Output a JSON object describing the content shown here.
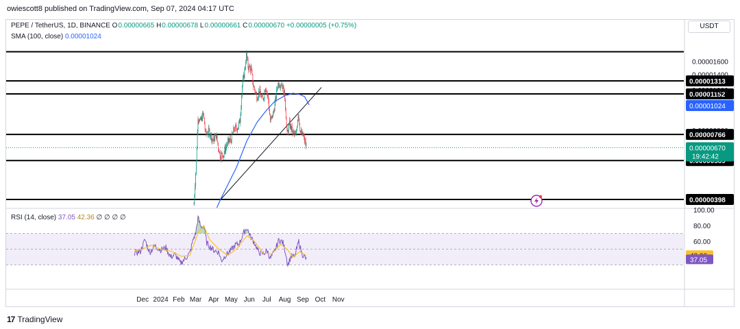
{
  "header": {
    "publisher": "owiescott8 published on TradingView.com, Sep 07, 2024 04:17 UTC"
  },
  "symbol_legend": {
    "symbol": "PEPE / TetherUS, 1D, BINANCE",
    "open_label": "O",
    "open": "0.00000665",
    "high_label": "H",
    "high": "0.00000678",
    "low_label": "L",
    "low": "0.00000661",
    "close_label": "C",
    "close": "0.00000670",
    "change": "+0.00000005 (+0.75%)"
  },
  "sma_legend": {
    "label": "SMA (100, close)",
    "value": "0.00001024"
  },
  "rsi_legend": {
    "label": "RSI (14, close)",
    "rsi": "37.05",
    "ma": "42.36",
    "extras": [
      "∅",
      "∅",
      "∅",
      "∅"
    ]
  },
  "currency": "USDT",
  "footer": {
    "logo_text": "TradingView",
    "logo_mark": "17"
  },
  "colors": {
    "up": "#089981",
    "down": "#f23645",
    "sma": "#2962ff",
    "rsi": "#7e57c2",
    "rsi_ma": "#fbc02d",
    "rsi_band": "#7e57c2",
    "level": "#000000"
  },
  "chart_data": [
    {
      "type": "candlestick",
      "title": "",
      "price_axis_ticks": [
        "0.00001600",
        "0.00001400",
        "0.00001200",
        "0.00000800"
      ],
      "x_ticks": [
        "Dec",
        "2024",
        "Feb",
        "Mar",
        "Apr",
        "May",
        "Jun",
        "Jul",
        "Aug",
        "Sep",
        "Oct",
        "Nov"
      ],
      "levels": [
        {
          "label": "0.00001313",
          "value": 1.313e-05
        },
        {
          "label": "0.00001152",
          "value": 1.152e-05
        },
        {
          "label": "0.00000766",
          "value": 7.66e-06
        },
        {
          "label": "0.00000589",
          "value": 5.89e-06
        },
        {
          "label": "0.00000398",
          "value": 3.98e-06
        }
      ],
      "top_level": 1.76e-05,
      "sma_tag": {
        "label": "0.00001024",
        "value": 1.024e-05
      },
      "last_price_tag": {
        "label": "0.00000670",
        "countdown": "19:42:42",
        "value": 6.7e-06
      },
      "trendline": {
        "from": [
          "2024-04-13",
          3.98e-06
        ],
        "to": [
          "2024-10-03",
          1.23e-05
        ]
      },
      "price_anchors": [
        [
          "2024-02-27",
          3.8e-06
        ],
        [
          "2024-03-02",
          5.8e-06
        ],
        [
          "2024-03-05",
          9.2e-06
        ],
        [
          "2024-03-09",
          8.7e-06
        ],
        [
          "2024-03-14",
          9.4e-06
        ],
        [
          "2024-03-18",
          7.7e-06
        ],
        [
          "2024-03-24",
          7.9e-06
        ],
        [
          "2024-03-31",
          7.2e-06
        ],
        [
          "2024-04-05",
          7.6e-06
        ],
        [
          "2024-04-12",
          6.2e-06
        ],
        [
          "2024-04-18",
          6.3e-06
        ],
        [
          "2024-04-24",
          7e-06
        ],
        [
          "2024-05-01",
          7.3e-06
        ],
        [
          "2024-05-06",
          8.1e-06
        ],
        [
          "2024-05-12",
          8.2e-06
        ],
        [
          "2024-05-16",
          8.8e-06
        ],
        [
          "2024-05-20",
          1.25e-05
        ],
        [
          "2024-05-24",
          1.45e-05
        ],
        [
          "2024-05-27",
          1.7e-05
        ],
        [
          "2024-05-30",
          1.52e-05
        ],
        [
          "2024-06-04",
          1.48e-05
        ],
        [
          "2024-06-08",
          1.25e-05
        ],
        [
          "2024-06-14",
          1.12e-05
        ],
        [
          "2024-06-18",
          1.18e-05
        ],
        [
          "2024-06-24",
          1.08e-05
        ],
        [
          "2024-06-29",
          1.25e-05
        ],
        [
          "2024-07-04",
          1.08e-05
        ],
        [
          "2024-07-07",
          8.7e-06
        ],
        [
          "2024-07-12",
          9.4e-06
        ],
        [
          "2024-07-16",
          1.08e-05
        ],
        [
          "2024-07-20",
          1.28e-05
        ],
        [
          "2024-07-27",
          1.28e-05
        ],
        [
          "2024-08-01",
          1.12e-05
        ],
        [
          "2024-08-05",
          7.6e-06
        ],
        [
          "2024-08-09",
          8.5e-06
        ],
        [
          "2024-08-15",
          7.8e-06
        ],
        [
          "2024-08-20",
          7.5e-06
        ],
        [
          "2024-08-24",
          9.6e-06
        ],
        [
          "2024-08-28",
          7.8e-06
        ],
        [
          "2024-09-02",
          7.5e-06
        ],
        [
          "2024-09-07",
          6.7e-06
        ]
      ],
      "sma_points": [
        [
          "2024-04-03",
          3.5e-06
        ],
        [
          "2024-04-13",
          4e-06
        ],
        [
          "2024-04-25",
          4.6e-06
        ],
        [
          "2024-05-10",
          5.5e-06
        ],
        [
          "2024-05-28",
          7.2e-06
        ],
        [
          "2024-06-15",
          8.7e-06
        ],
        [
          "2024-07-01",
          9.8e-06
        ],
        [
          "2024-07-15",
          1.07e-05
        ],
        [
          "2024-08-01",
          1.13e-05
        ],
        [
          "2024-08-15",
          1.16e-05
        ],
        [
          "2024-08-25",
          1.15e-05
        ],
        [
          "2024-09-04",
          1.12e-05
        ],
        [
          "2024-09-12",
          1.03e-05
        ]
      ]
    },
    {
      "type": "line",
      "title": "",
      "y_ticks": [
        "100.00",
        "80.00",
        "60.00"
      ],
      "ylim": [
        10,
        100
      ],
      "band": [
        30,
        70
      ],
      "rsi_tags": {
        "ma": "42.36",
        "rsi": "37.05"
      },
      "rsi_anchors": [
        [
          "2023-11-17",
          45
        ],
        [
          "2023-11-27",
          47
        ],
        [
          "2023-12-05",
          62
        ],
        [
          "2023-12-13",
          46
        ],
        [
          "2023-12-22",
          54
        ],
        [
          "2024-01-01",
          49
        ],
        [
          "2024-01-10",
          52
        ],
        [
          "2024-01-18",
          40
        ],
        [
          "2024-01-26",
          43
        ],
        [
          "2024-02-04",
          32
        ],
        [
          "2024-02-12",
          38
        ],
        [
          "2024-02-20",
          45
        ],
        [
          "2024-02-26",
          63
        ],
        [
          "2024-03-01",
          70
        ],
        [
          "2024-03-05",
          90
        ],
        [
          "2024-03-10",
          78
        ],
        [
          "2024-03-15",
          80
        ],
        [
          "2024-03-20",
          58
        ],
        [
          "2024-03-27",
          52
        ],
        [
          "2024-04-03",
          48
        ],
        [
          "2024-04-10",
          46
        ],
        [
          "2024-04-14",
          35
        ],
        [
          "2024-04-21",
          42
        ],
        [
          "2024-04-30",
          48
        ],
        [
          "2024-05-08",
          55
        ],
        [
          "2024-05-15",
          57
        ],
        [
          "2024-05-22",
          70
        ],
        [
          "2024-05-28",
          77
        ],
        [
          "2024-06-03",
          66
        ],
        [
          "2024-06-10",
          58
        ],
        [
          "2024-06-17",
          46
        ],
        [
          "2024-06-25",
          44
        ],
        [
          "2024-07-02",
          48
        ],
        [
          "2024-07-07",
          38
        ],
        [
          "2024-07-14",
          46
        ],
        [
          "2024-07-22",
          62
        ],
        [
          "2024-07-29",
          58
        ],
        [
          "2024-08-03",
          44
        ],
        [
          "2024-08-06",
          30
        ],
        [
          "2024-08-12",
          41
        ],
        [
          "2024-08-18",
          40
        ],
        [
          "2024-08-25",
          60
        ],
        [
          "2024-08-30",
          45
        ],
        [
          "2024-09-07",
          37
        ]
      ],
      "rsi_ma_anchors": [
        [
          "2023-11-17",
          48
        ],
        [
          "2023-12-01",
          50
        ],
        [
          "2023-12-15",
          55
        ],
        [
          "2024-01-01",
          50
        ],
        [
          "2024-01-20",
          47
        ],
        [
          "2024-02-05",
          41
        ],
        [
          "2024-02-20",
          42
        ],
        [
          "2024-03-05",
          70
        ],
        [
          "2024-03-15",
          80
        ],
        [
          "2024-03-25",
          62
        ],
        [
          "2024-04-10",
          50
        ],
        [
          "2024-04-25",
          42
        ],
        [
          "2024-05-10",
          50
        ],
        [
          "2024-05-28",
          67
        ],
        [
          "2024-06-10",
          60
        ],
        [
          "2024-06-25",
          45
        ],
        [
          "2024-07-10",
          44
        ],
        [
          "2024-07-25",
          56
        ],
        [
          "2024-08-05",
          50
        ],
        [
          "2024-08-15",
          40
        ],
        [
          "2024-08-27",
          47
        ],
        [
          "2024-09-07",
          42
        ]
      ]
    }
  ]
}
